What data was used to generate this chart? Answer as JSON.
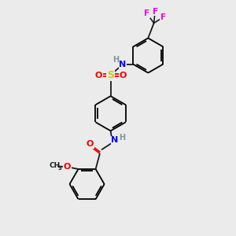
{
  "background_color": "#ebebeb",
  "bond_color": "#1a1a1a",
  "atom_colors": {
    "N": "#0000ee",
    "O": "#ee0000",
    "S": "#cccc00",
    "F": "#ee00ee",
    "C": "#1a1a1a",
    "H": "#7a9a9a"
  },
  "lw": 1.3,
  "xlim": [
    0,
    10
  ],
  "ylim": [
    0,
    10
  ],
  "r_hex": 0.75
}
